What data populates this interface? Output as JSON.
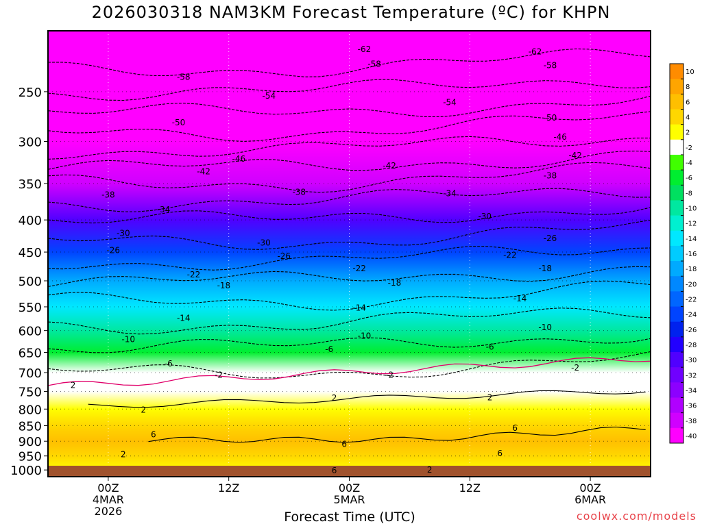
{
  "chart_data": {
    "type": "heatmap",
    "title": "2026030318 NAM3KM Forecast Temperature (ºC) for KHPN",
    "xlabel": "Forecast Time (UTC)",
    "ylabel": "",
    "credit": "coolwx.com/models",
    "x_hours_range": [
      -6,
      54
    ],
    "y_pressure_range": [
      1025,
      200
    ],
    "y_ticks": [
      250,
      300,
      350,
      400,
      450,
      500,
      550,
      600,
      650,
      700,
      750,
      800,
      850,
      900,
      950,
      1000
    ],
    "x_ticks": [
      {
        "hour": 0,
        "lines": [
          "00Z",
          "4MAR",
          "2026"
        ]
      },
      {
        "hour": 12,
        "lines": [
          "12Z"
        ]
      },
      {
        "hour": 24,
        "lines": [
          "00Z",
          "5MAR"
        ]
      },
      {
        "hour": 36,
        "lines": [
          "12Z"
        ]
      },
      {
        "hour": 48,
        "lines": [
          "00Z",
          "6MAR"
        ]
      }
    ],
    "colorbar": {
      "levels": [
        "10",
        "8",
        "6",
        "4",
        "2",
        "-2",
        "-4",
        "-6",
        "-8",
        "-10",
        "-12",
        "-14",
        "-16",
        "-18",
        "-20",
        "-22",
        "-24",
        "-26",
        "-28",
        "-30",
        "-32",
        "-34",
        "-36",
        "-38",
        "-40"
      ],
      "colors": [
        "#ff8c00",
        "#ffa500",
        "#ffbf00",
        "#ffd700",
        "#ffff00",
        "#ffffff",
        "#40ff00",
        "#00ee30",
        "#00e060",
        "#00e8a0",
        "#00f0d0",
        "#00e8ff",
        "#00ccff",
        "#00aaff",
        "#0088ff",
        "#0066ff",
        "#0044ff",
        "#0022ee",
        "#2200ff",
        "#5000ff",
        "#7000ff",
        "#8c00ff",
        "#b000ff",
        "#d000ff",
        "#ff00ff"
      ]
    },
    "profile": [
      {
        "p": 230,
        "t": -62
      },
      {
        "p": 260,
        "t": -56
      },
      {
        "p": 300,
        "t": -48
      },
      {
        "p": 350,
        "t": -38
      },
      {
        "p": 400,
        "t": -30
      },
      {
        "p": 450,
        "t": -24
      },
      {
        "p": 500,
        "t": -18
      },
      {
        "p": 550,
        "t": -13
      },
      {
        "p": 600,
        "t": -9
      },
      {
        "p": 650,
        "t": -5
      },
      {
        "p": 700,
        "t": -2
      },
      {
        "p": 750,
        "t": 1
      },
      {
        "p": 800,
        "t": 3
      },
      {
        "p": 850,
        "t": 5
      },
      {
        "p": 900,
        "t": 6
      },
      {
        "p": 950,
        "t": 5
      },
      {
        "p": 1000,
        "t": 3
      }
    ],
    "contour_labels": [
      {
        "text": "-62",
        "h": 25.5,
        "p": 214
      },
      {
        "text": "-62",
        "h": 42.5,
        "p": 216
      },
      {
        "text": "-58",
        "h": 7.5,
        "p": 237
      },
      {
        "text": "-58",
        "h": 26.5,
        "p": 226
      },
      {
        "text": "-58",
        "h": 44,
        "p": 227
      },
      {
        "text": "-54",
        "h": 16,
        "p": 254
      },
      {
        "text": "-54",
        "h": 34,
        "p": 260
      },
      {
        "text": "-50",
        "h": 7,
        "p": 280
      },
      {
        "text": "-50",
        "h": 44,
        "p": 275
      },
      {
        "text": "-46",
        "h": 13,
        "p": 320
      },
      {
        "text": "-46",
        "h": 45,
        "p": 295
      },
      {
        "text": "-42",
        "h": 9.5,
        "p": 335
      },
      {
        "text": "-42",
        "h": 28,
        "p": 328
      },
      {
        "text": "-42",
        "h": 46.5,
        "p": 316
      },
      {
        "text": "-38",
        "h": 0,
        "p": 365
      },
      {
        "text": "-38",
        "h": 19,
        "p": 361
      },
      {
        "text": "-38",
        "h": 44,
        "p": 340
      },
      {
        "text": "-34",
        "h": 5.5,
        "p": 385
      },
      {
        "text": "-34",
        "h": 34,
        "p": 363
      },
      {
        "text": "-30",
        "h": 1.5,
        "p": 420
      },
      {
        "text": "-30",
        "h": 15.5,
        "p": 435
      },
      {
        "text": "-30",
        "h": 37.5,
        "p": 395
      },
      {
        "text": "-26",
        "h": 0.5,
        "p": 447
      },
      {
        "text": "-26",
        "h": 17.5,
        "p": 457
      },
      {
        "text": "-26",
        "h": 44,
        "p": 428
      },
      {
        "text": "-22",
        "h": 8.5,
        "p": 489
      },
      {
        "text": "-22",
        "h": 25,
        "p": 478
      },
      {
        "text": "-22",
        "h": 40,
        "p": 455
      },
      {
        "text": "-18",
        "h": 11.5,
        "p": 509
      },
      {
        "text": "-18",
        "h": 28.5,
        "p": 504
      },
      {
        "text": "-18",
        "h": 43.5,
        "p": 478
      },
      {
        "text": "-14",
        "h": 7.5,
        "p": 573
      },
      {
        "text": "-14",
        "h": 25,
        "p": 552
      },
      {
        "text": "-14",
        "h": 41,
        "p": 534
      },
      {
        "text": "-10",
        "h": 2,
        "p": 620
      },
      {
        "text": "-10",
        "h": 25.5,
        "p": 612
      },
      {
        "text": "-10",
        "h": 43.5,
        "p": 593
      },
      {
        "text": "-6",
        "h": 6,
        "p": 677
      },
      {
        "text": "-6",
        "h": 22,
        "p": 643
      },
      {
        "text": "-6",
        "h": 38,
        "p": 637
      },
      {
        "text": "-2",
        "h": 11,
        "p": 706
      },
      {
        "text": "-2",
        "h": 28,
        "p": 706
      },
      {
        "text": "-2",
        "h": 46.5,
        "p": 688
      },
      {
        "text": "2",
        "h": -3.5,
        "p": 733
      },
      {
        "text": "2",
        "h": 22.5,
        "p": 768
      },
      {
        "text": "2",
        "h": 38,
        "p": 767
      },
      {
        "text": "2",
        "h": 3.5,
        "p": 802
      },
      {
        "text": "2",
        "h": 1.5,
        "p": 945
      },
      {
        "text": "2",
        "h": 32,
        "p": 1000
      },
      {
        "text": "6",
        "h": 4.5,
        "p": 878
      },
      {
        "text": "6",
        "h": 40.5,
        "p": 858
      },
      {
        "text": "6",
        "h": 23.5,
        "p": 910
      },
      {
        "text": "6",
        "h": 39,
        "p": 941
      },
      {
        "text": "6",
        "h": 22.5,
        "p": 1002
      }
    ]
  }
}
